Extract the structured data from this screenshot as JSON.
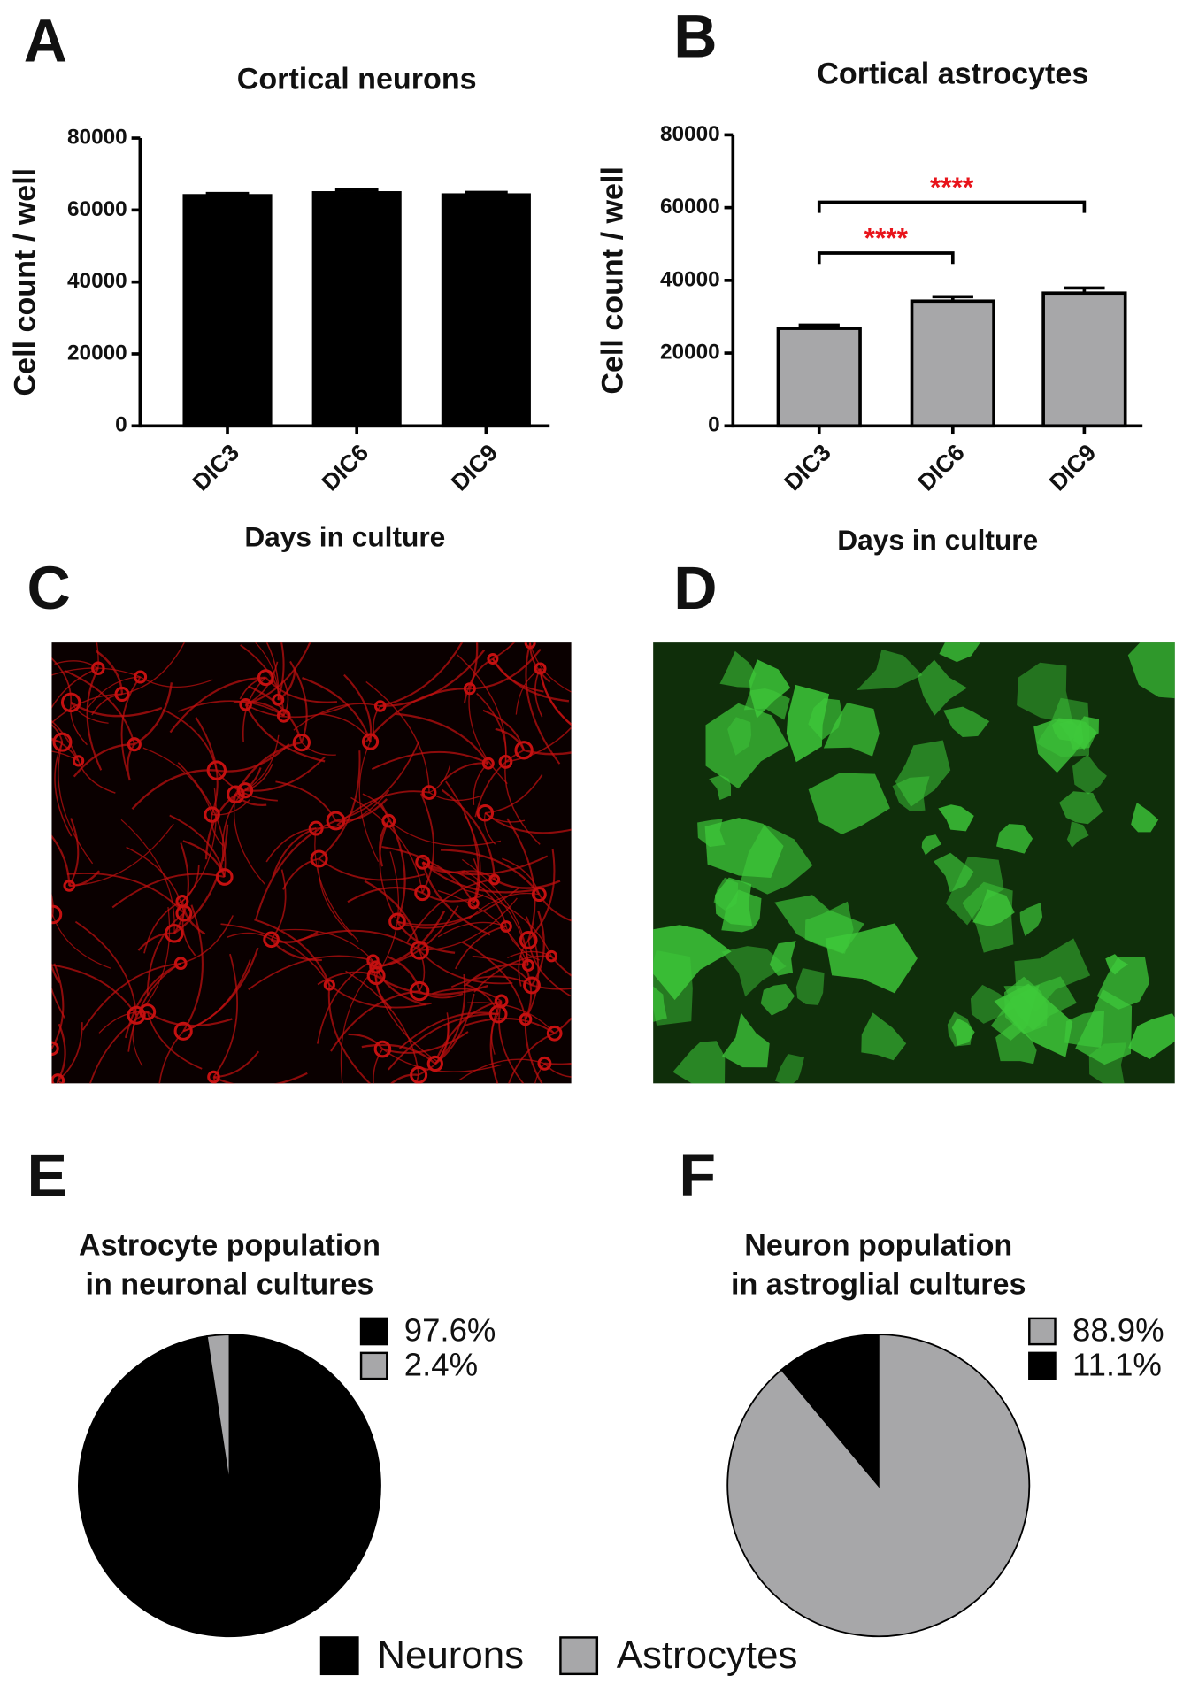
{
  "chart_data": [
    {
      "type": "bar",
      "panel": "A",
      "title": "Cortical neurons",
      "ylabel": "Cell count / well",
      "xlabel": "Days in culture",
      "categories": [
        "DIC3",
        "DIC6",
        "DIC9"
      ],
      "values": [
        64000,
        64800,
        64200
      ],
      "errors": [
        600,
        800,
        700
      ],
      "color": "#000000",
      "ylim": [
        0,
        80000
      ],
      "yticks": [
        0,
        20000,
        40000,
        60000,
        80000
      ]
    },
    {
      "type": "bar",
      "panel": "B",
      "title": "Cortical astrocytes",
      "ylabel": "Cell count / well",
      "xlabel": "Days in culture",
      "categories": [
        "DIC3",
        "DIC6",
        "DIC9"
      ],
      "values": [
        26800,
        34300,
        36500
      ],
      "errors": [
        900,
        1200,
        1400
      ],
      "color": "#a7a7a9",
      "ylim": [
        0,
        80000
      ],
      "yticks": [
        0,
        20000,
        40000,
        60000,
        80000
      ],
      "annotations": [
        {
          "text": "****",
          "from": 0,
          "to": 1,
          "y": 47500
        },
        {
          "text": "****",
          "from": 0,
          "to": 2,
          "y": 61500
        }
      ]
    },
    {
      "type": "pie",
      "panel": "E",
      "title": [
        "Astrocyte population",
        "in neuronal cultures"
      ],
      "values": [
        97.6,
        2.4
      ],
      "value_labels": [
        "97.6%",
        "2.4%"
      ],
      "colors": [
        "#000000",
        "#a7a7a9"
      ]
    },
    {
      "type": "pie",
      "panel": "F",
      "title": [
        "Neuron population",
        "in astroglial cultures"
      ],
      "values": [
        88.9,
        11.1
      ],
      "value_labels": [
        "88.9%",
        "11.1%"
      ],
      "colors": [
        "#a7a7a9",
        "#000000"
      ]
    }
  ],
  "image_panels": [
    {
      "panel": "C"
    },
    {
      "panel": "D"
    }
  ],
  "legend": [
    {
      "name": "Neurons",
      "color": "#000000"
    },
    {
      "name": "Astrocytes",
      "color": "#a7a7a9"
    }
  ]
}
